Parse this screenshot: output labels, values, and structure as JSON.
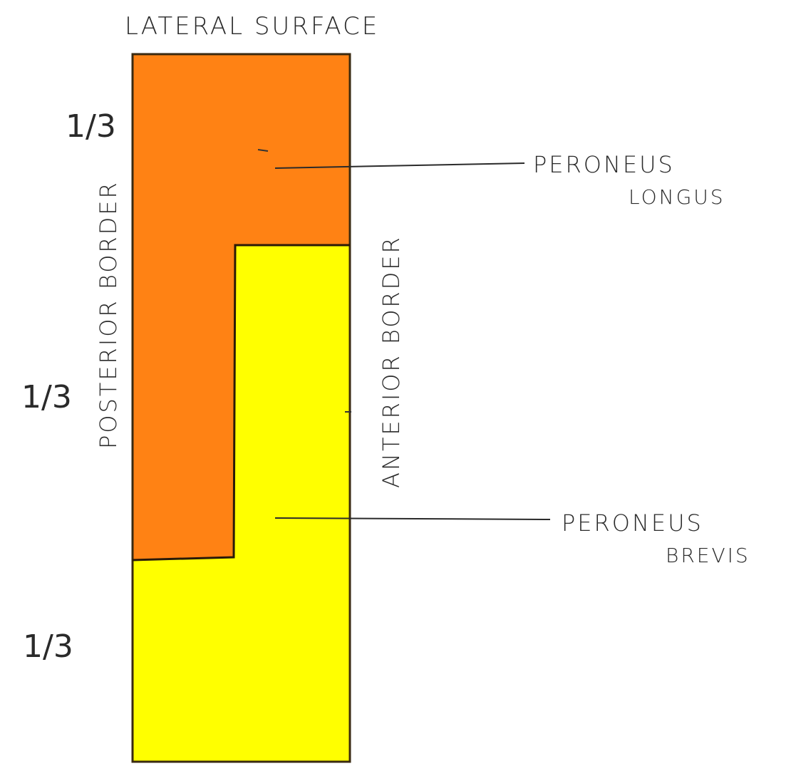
{
  "title": "LATERAL SURFACE",
  "fractions": {
    "top": "1/3",
    "middle": "1/3",
    "bottom": "1/3"
  },
  "borders": {
    "posterior": "POSTERIOR BORDER",
    "anterior": "ANTERIOR BORDER"
  },
  "muscles": {
    "longus": {
      "line1": "PERONEUS",
      "line2": "LONGUS",
      "color": "#ff8214"
    },
    "brevis": {
      "line1": "PERONEUS",
      "line2": "BREVIS",
      "color": "#ffff00"
    }
  }
}
